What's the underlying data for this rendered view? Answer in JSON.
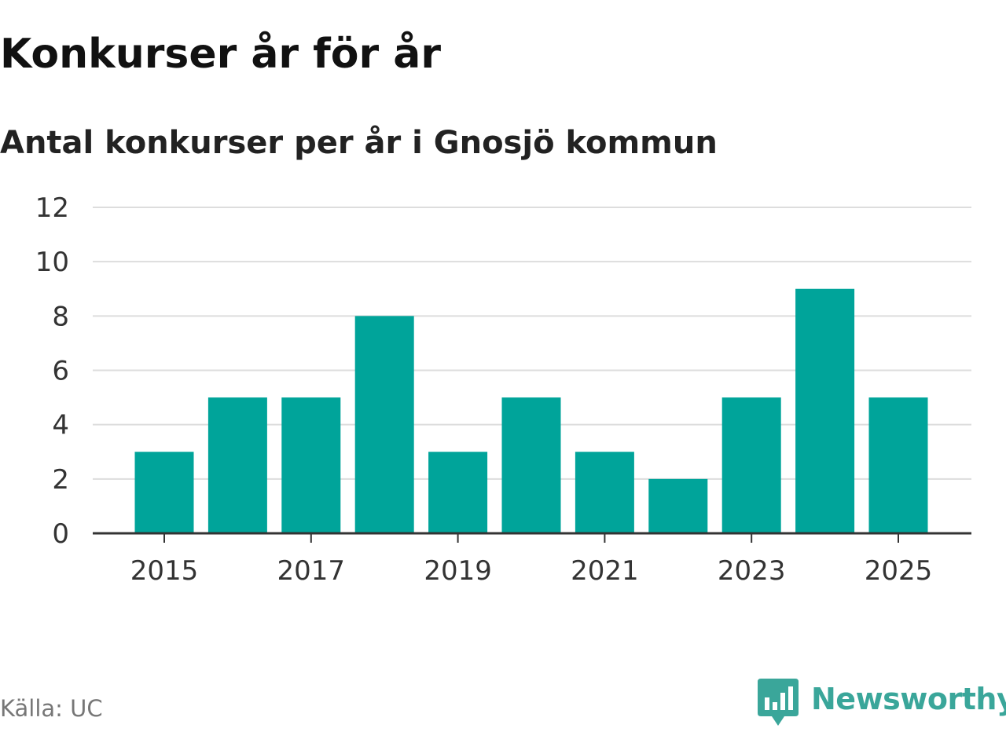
{
  "header": {
    "title": "Konkurser år för år",
    "subtitle": "Antal konkurser per år i Gnosjö kommun"
  },
  "footer": {
    "source": "Källa: UC",
    "brand": "Newsworthy",
    "brand_icon": "newsworthy-logo-icon"
  },
  "colors": {
    "bar": "#00a49a",
    "grid": "#dddddd",
    "axis": "#333333",
    "brand": "#3aa69a"
  },
  "chart_data": {
    "type": "bar",
    "title": "Konkurser år för år",
    "subtitle": "Antal konkurser per år i Gnosjö kommun",
    "xlabel": "",
    "ylabel": "",
    "categories": [
      "2015",
      "2016",
      "2017",
      "2018",
      "2019",
      "2020",
      "2021",
      "2022",
      "2023",
      "2024",
      "2025"
    ],
    "values": [
      3,
      5,
      5,
      8,
      3,
      5,
      3,
      2,
      5,
      9,
      5
    ],
    "ylim": [
      0,
      12
    ],
    "yticks": [
      0,
      2,
      4,
      6,
      8,
      10,
      12
    ],
    "xtick_labels": [
      "2015",
      "2017",
      "2019",
      "2021",
      "2023",
      "2025"
    ],
    "grid": true,
    "legend": "none"
  }
}
